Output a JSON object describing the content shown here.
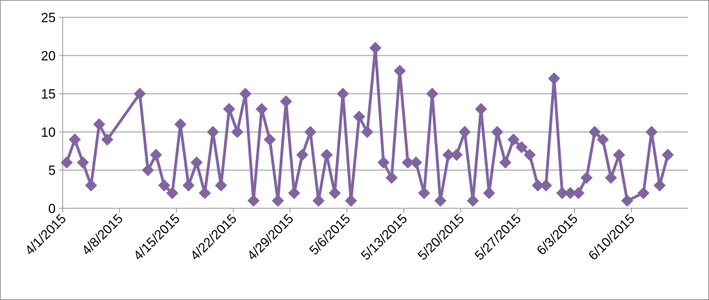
{
  "chart_data": {
    "type": "line",
    "title": "",
    "xlabel": "",
    "ylabel": "",
    "ylim": [
      0,
      25
    ],
    "y_ticks": [
      0,
      5,
      10,
      15,
      20,
      25
    ],
    "x_tick_labels": [
      "4/1/2015",
      "4/8/2015",
      "4/15/2015",
      "4/22/2015",
      "4/29/2015",
      "5/6/2015",
      "5/13/2015",
      "5/20/2015",
      "5/27/2015",
      "6/3/2015",
      "6/10/2015"
    ],
    "grid": true,
    "legend": "none",
    "series": [
      {
        "color": "#8064a2",
        "marker": "diamond",
        "points": [
          [
            "4/1/2015",
            6
          ],
          [
            "4/2/2015",
            9
          ],
          [
            "4/3/2015",
            6
          ],
          [
            "4/4/2015",
            3
          ],
          [
            "4/5/2015",
            11
          ],
          [
            "4/6/2015",
            9
          ],
          [
            "4/10/2015",
            15
          ],
          [
            "4/11/2015",
            5
          ],
          [
            "4/12/2015",
            7
          ],
          [
            "4/13/2015",
            3
          ],
          [
            "4/14/2015",
            2
          ],
          [
            "4/15/2015",
            11
          ],
          [
            "4/16/2015",
            3
          ],
          [
            "4/17/2015",
            6
          ],
          [
            "4/18/2015",
            2
          ],
          [
            "4/19/2015",
            10
          ],
          [
            "4/20/2015",
            3
          ],
          [
            "4/21/2015",
            13
          ],
          [
            "4/22/2015",
            10
          ],
          [
            "4/23/2015",
            15
          ],
          [
            "4/24/2015",
            1
          ],
          [
            "4/25/2015",
            13
          ],
          [
            "4/26/2015",
            9
          ],
          [
            "4/27/2015",
            1
          ],
          [
            "4/28/2015",
            14
          ],
          [
            "4/29/2015",
            2
          ],
          [
            "4/30/2015",
            7
          ],
          [
            "5/1/2015",
            10
          ],
          [
            "5/2/2015",
            1
          ],
          [
            "5/3/2015",
            7
          ],
          [
            "5/4/2015",
            2
          ],
          [
            "5/5/2015",
            15
          ],
          [
            "5/6/2015",
            1
          ],
          [
            "5/7/2015",
            12
          ],
          [
            "5/8/2015",
            10
          ],
          [
            "5/9/2015",
            21
          ],
          [
            "5/10/2015",
            6
          ],
          [
            "5/11/2015",
            4
          ],
          [
            "5/12/2015",
            18
          ],
          [
            "5/13/2015",
            6
          ],
          [
            "5/14/2015",
            6
          ],
          [
            "5/15/2015",
            2
          ],
          [
            "5/16/2015",
            15
          ],
          [
            "5/17/2015",
            1
          ],
          [
            "5/18/2015",
            7
          ],
          [
            "5/19/2015",
            7
          ],
          [
            "5/20/2015",
            10
          ],
          [
            "5/21/2015",
            1
          ],
          [
            "5/22/2015",
            13
          ],
          [
            "5/23/2015",
            2
          ],
          [
            "5/24/2015",
            10
          ],
          [
            "5/25/2015",
            6
          ],
          [
            "5/26/2015",
            9
          ],
          [
            "5/27/2015",
            8
          ],
          [
            "5/28/2015",
            7
          ],
          [
            "5/29/2015",
            3
          ],
          [
            "5/30/2015",
            3
          ],
          [
            "5/31/2015",
            17
          ],
          [
            "6/1/2015",
            2
          ],
          [
            "6/2/2015",
            2
          ],
          [
            "6/3/2015",
            2
          ],
          [
            "6/4/2015",
            4
          ],
          [
            "6/5/2015",
            10
          ],
          [
            "6/6/2015",
            9
          ],
          [
            "6/7/2015",
            4
          ],
          [
            "6/8/2015",
            7
          ],
          [
            "6/9/2015",
            1
          ],
          [
            "6/11/2015",
            2
          ],
          [
            "6/12/2015",
            10
          ],
          [
            "6/13/2015",
            3
          ],
          [
            "6/14/2015",
            7
          ]
        ]
      }
    ]
  }
}
